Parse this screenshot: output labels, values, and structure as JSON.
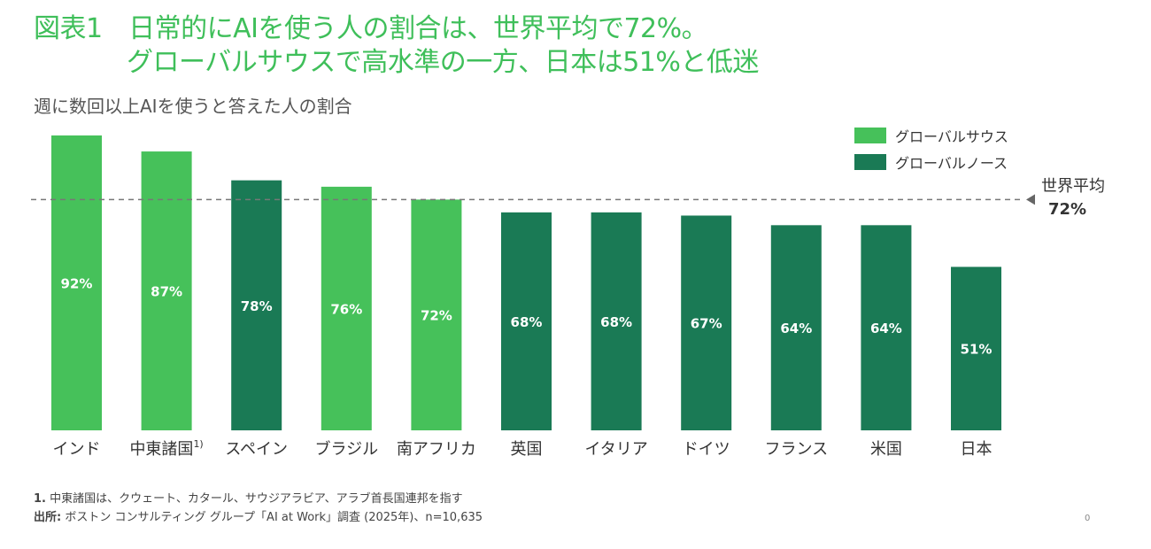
{
  "title": {
    "line1": "図表1　日常的にAIを使う人の割合は、世界平均で72%。",
    "line2": "グローバルサウスで高水準の一方、日本は51%と低迷"
  },
  "subtitle": "週に数回以上AIを使うと答えた人の割合",
  "legend": [
    {
      "label": "グローバルサウス",
      "color": "#46c15a"
    },
    {
      "label": "グローバルノース",
      "color": "#1a7a55"
    }
  ],
  "average": {
    "label": "世界平均",
    "value_label": "72%",
    "value": 72
  },
  "footnote_marker": "1)",
  "footnotes": {
    "note1_num": "1.",
    "note1": "中東諸国は、クウェート、カタール、サウジアラビア、アラブ首長国連邦を指す",
    "source_label": "出所:",
    "source": "ボストン コンサルティング グループ「AI at Work」調査 (2025年)、n=10,635"
  },
  "page_number": "0",
  "chart_data": {
    "type": "bar",
    "title": "週に数回以上AIを使うと答えた人の割合",
    "categories": [
      "インド",
      "中東諸国",
      "スペイン",
      "ブラジル",
      "南アフリカ",
      "英国",
      "イタリア",
      "ドイツ",
      "フランス",
      "米国",
      "日本"
    ],
    "values": [
      92,
      87,
      78,
      76,
      72,
      68,
      68,
      67,
      64,
      64,
      51
    ],
    "labels": [
      "92%",
      "87%",
      "78%",
      "76%",
      "72%",
      "68%",
      "68%",
      "67%",
      "64%",
      "64%",
      "51%"
    ],
    "group": [
      "グローバルサウス",
      "グローバルサウス",
      "グローバルノース",
      "グローバルサウス",
      "グローバルサウス",
      "グローバルノース",
      "グローバルノース",
      "グローバルノース",
      "グローバルノース",
      "グローバルノース",
      "グローバルノース"
    ],
    "reference_line": {
      "name": "世界平均",
      "value": 72
    },
    "ylim": [
      0,
      100
    ],
    "legend_position": "top-right",
    "grid": false
  }
}
